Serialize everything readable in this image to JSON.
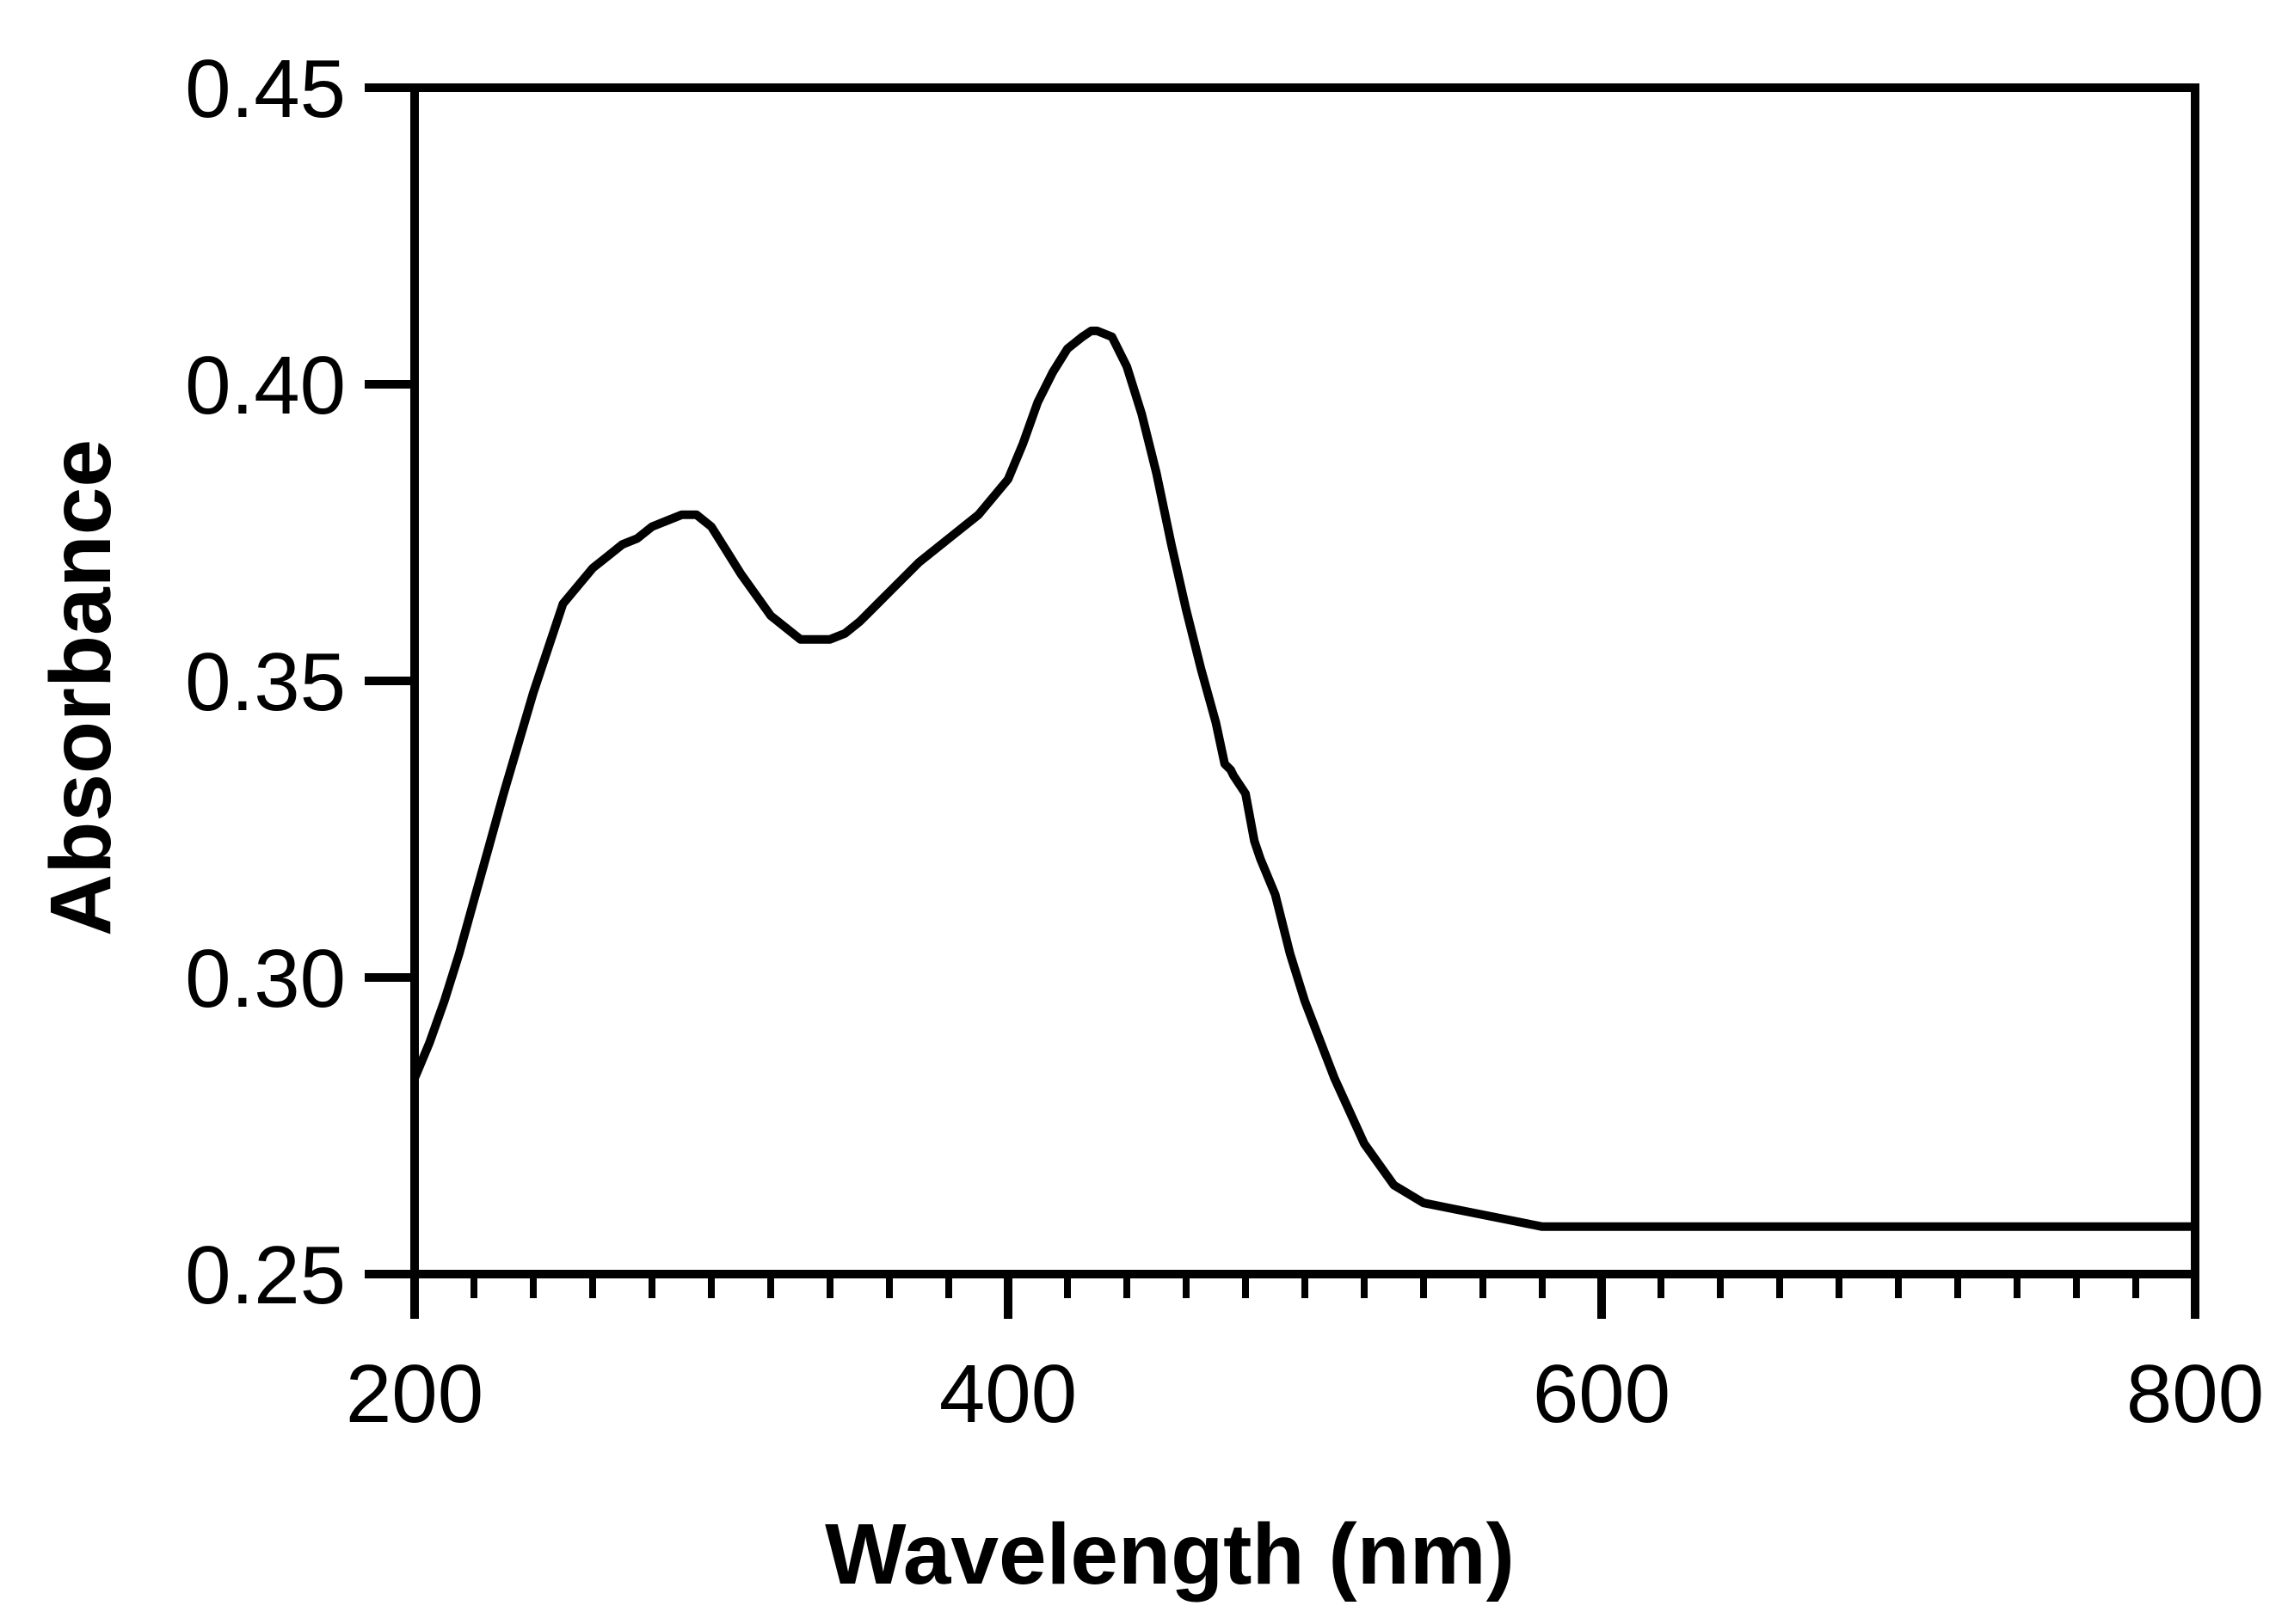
{
  "chart_data": {
    "type": "line",
    "title": "",
    "xlabel": "Wavelength (nm)",
    "ylabel": "Absorbance",
    "xlim": [
      200,
      800
    ],
    "ylim": [
      0.25,
      0.45
    ],
    "x_major_ticks": [
      200,
      400,
      600,
      800
    ],
    "x_tick_labels": [
      "200",
      "400",
      "600",
      "800"
    ],
    "x_minor_tick_step": 20,
    "y_major_ticks": [
      0.25,
      0.3,
      0.35,
      0.4,
      0.45
    ],
    "y_tick_labels": [
      "0.25",
      "0.30",
      "0.35",
      "0.40",
      "0.45"
    ],
    "grid": false,
    "line_color": "#000000",
    "series": [
      {
        "name": "Absorbance",
        "x": [
          200,
          205,
          210,
          215,
          220,
          225,
          230,
          240,
          250,
          260,
          265,
          270,
          275,
          280,
          285,
          290,
          295,
          300,
          305,
          310,
          320,
          330,
          340,
          345,
          350,
          360,
          370,
          380,
          390,
          395,
          400,
          405,
          410,
          415,
          420,
          425,
          428,
          430,
          435,
          440,
          445,
          450,
          455,
          460,
          465,
          470,
          473,
          475,
          476,
          480,
          483,
          485,
          490,
          495,
          500,
          510,
          520,
          530,
          540,
          550,
          560,
          570,
          580,
          600,
          650,
          700,
          750,
          800
        ],
        "y": [
          0.283,
          0.289,
          0.296,
          0.304,
          0.313,
          0.322,
          0.331,
          0.348,
          0.363,
          0.369,
          0.371,
          0.373,
          0.374,
          0.376,
          0.377,
          0.378,
          0.378,
          0.376,
          0.372,
          0.368,
          0.361,
          0.357,
          0.357,
          0.358,
          0.36,
          0.365,
          0.37,
          0.374,
          0.378,
          0.381,
          0.384,
          0.39,
          0.397,
          0.402,
          0.406,
          0.408,
          0.409,
          0.409,
          0.408,
          0.403,
          0.395,
          0.385,
          0.373,
          0.362,
          0.352,
          0.343,
          0.336,
          0.335,
          0.334,
          0.331,
          0.323,
          0.32,
          0.314,
          0.304,
          0.296,
          0.283,
          0.272,
          0.265,
          0.262,
          0.261,
          0.26,
          0.259,
          0.258,
          0.258,
          0.258,
          0.258,
          0.258,
          0.258
        ]
      }
    ]
  }
}
